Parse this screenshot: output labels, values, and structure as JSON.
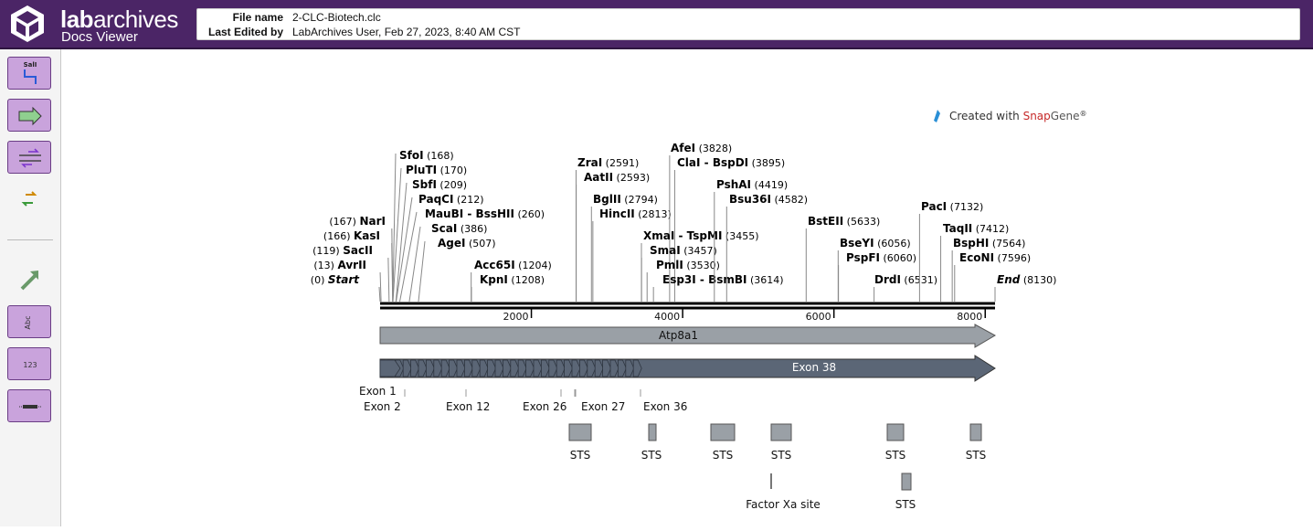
{
  "app": {
    "brand_prefix": "lab",
    "brand_suffix": "archives",
    "subtitle": "Docs Viewer"
  },
  "file_info": {
    "name_label": "File name",
    "name_value": "2-CLC-Biotech.clc",
    "edited_label": "Last Edited by",
    "edited_value": "LabArchives User, Feb 27, 2023, 8:40 AM CST"
  },
  "toolbar": [
    {
      "name": "enzymes-tool-button",
      "icon": "restriction-site-icon",
      "label": "SalI",
      "style": "button"
    },
    {
      "name": "features-tool-button",
      "icon": "feature-arrow-icon",
      "style": "button"
    },
    {
      "name": "primers-tool-button",
      "icon": "primer-arrows-icon",
      "style": "button"
    },
    {
      "name": "orfs-tool-button",
      "icon": "orf-arrows-icon",
      "style": "plain"
    },
    {
      "name": "translation-tool-button",
      "icon": "translation-arrow-icon",
      "style": "plain"
    },
    {
      "name": "sequence-text-tool-button",
      "icon": "text-abc-icon",
      "label": "Abc",
      "style": "button"
    },
    {
      "name": "numbering-tool-button",
      "icon": "numbers-icon",
      "label": "123",
      "style": "button"
    },
    {
      "name": "ruler-tool-button",
      "icon": "ruler-icon",
      "style": "button"
    }
  ],
  "map": {
    "credit_prefix": "Created with ",
    "credit_snap": "Snap",
    "credit_gene": "Gene",
    "credit_reg": "®",
    "length": 8130,
    "ticks": [
      2000,
      4000,
      6000,
      8000
    ],
    "enzymes_left": [
      {
        "name": "SfoI",
        "pos": "(168)",
        "site": 168
      },
      {
        "name": "PluTI",
        "pos": "(170)",
        "site": 170
      },
      {
        "name": "SbfI",
        "pos": "(209)",
        "site": 209
      },
      {
        "name": "PaqCI",
        "pos": "(212)",
        "site": 212
      },
      {
        "name": "MauBI",
        "sep": " - ",
        "name2": "BssHII",
        "pos": "(260)",
        "site": 260
      },
      {
        "name": "ScaI",
        "pos": "(386)",
        "site": 386
      },
      {
        "name": "AgeI",
        "pos": "(507)",
        "site": 507
      }
    ],
    "enzymes_rev": [
      {
        "name": "NarI",
        "pos": "(167)",
        "site": 167
      },
      {
        "name": "KasI",
        "pos": "(166)",
        "site": 166
      },
      {
        "name": "SacII",
        "pos": "(119)",
        "site": 119
      },
      {
        "name": "AvrII",
        "pos": "(13)",
        "site": 13
      },
      {
        "name": "Start",
        "pos": "(0)",
        "site": 0,
        "italic": true
      }
    ],
    "enzymes_mid": [
      {
        "name": "Acc65I",
        "pos": "(1204)",
        "site": 1204
      },
      {
        "name": "KpnI",
        "pos": "(1208)",
        "site": 1208
      },
      {
        "name": "ZraI",
        "pos": "(2591)",
        "site": 2591
      },
      {
        "name": "AatII",
        "pos": "(2593)",
        "site": 2593
      },
      {
        "name": "BglII",
        "pos": "(2794)",
        "site": 2794
      },
      {
        "name": "HincII",
        "pos": "(2813)",
        "site": 2813
      },
      {
        "name": "AfeI",
        "pos": "(3828)",
        "site": 3828
      },
      {
        "name": "ClaI",
        "sep": " - ",
        "name2": "BspDI",
        "pos": "(3895)",
        "site": 3895
      },
      {
        "name": "XmaI",
        "sep": " - ",
        "name2": "TspMI",
        "pos": "(3455)",
        "site": 3455
      },
      {
        "name": "SmaI",
        "pos": "(3457)",
        "site": 3457
      },
      {
        "name": "PmlI",
        "pos": "(3530)",
        "site": 3530
      },
      {
        "name": "Esp3I",
        "sep": " - ",
        "name2": "BsmBI",
        "pos": "(3614)",
        "site": 3614
      },
      {
        "name": "PshAI",
        "pos": "(4419)",
        "site": 4419
      },
      {
        "name": "Bsu36I",
        "pos": "(4582)",
        "site": 4582
      },
      {
        "name": "BstEII",
        "pos": "(5633)",
        "site": 5633
      },
      {
        "name": "BseYI",
        "pos": "(6056)",
        "site": 6056
      },
      {
        "name": "PspFI",
        "pos": "(6060)",
        "site": 6060
      },
      {
        "name": "DrdI",
        "pos": "(6531)",
        "site": 6531
      },
      {
        "name": "PacI",
        "pos": "(7132)",
        "site": 7132
      },
      {
        "name": "TaqII",
        "pos": "(7412)",
        "site": 7412
      },
      {
        "name": "BspHI",
        "pos": "(7564)",
        "site": 7564
      },
      {
        "name": "EcoNI",
        "pos": "(7596)",
        "site": 7596
      },
      {
        "name": "End",
        "pos": "(8130)",
        "site": 8130,
        "italic": true
      }
    ],
    "gene": {
      "name": "Atp8a1",
      "color": "#9aa0a6"
    },
    "exon_track": {
      "label": "Exon 38",
      "color": "#5b6676"
    },
    "exon_labels": [
      "Exon 1",
      "Exon 2",
      "Exon 12",
      "Exon 26",
      "Exon 27",
      "Exon 36"
    ],
    "sts_label": "STS",
    "factor_label": "Factor Xa site"
  }
}
